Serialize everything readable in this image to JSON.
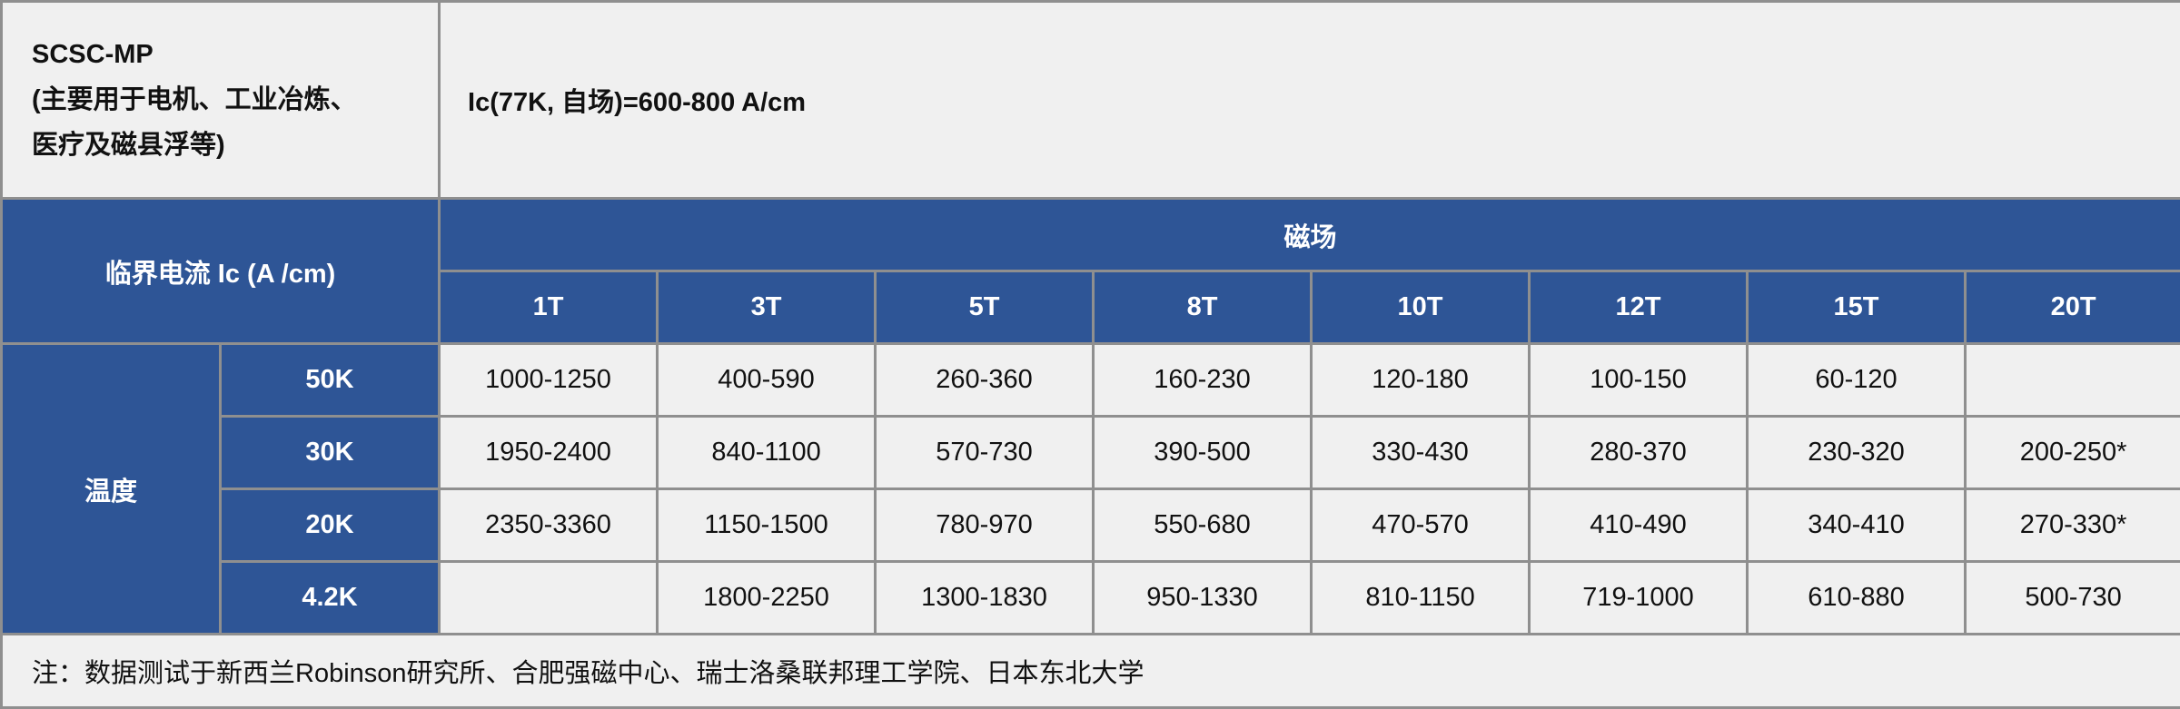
{
  "product": {
    "name": "SCSC-MP",
    "usage_line1": "(主要用于电机、工业冶炼、",
    "usage_line2": "医疗及磁县浮等)",
    "spec": "Ic(77K, 自场)=600-800 A/cm"
  },
  "header": {
    "critical_current": "临界电流 Ic (A /cm)",
    "field": "磁场",
    "fields": [
      "1T",
      "3T",
      "5T",
      "8T",
      "10T",
      "12T",
      "15T",
      "20T"
    ]
  },
  "temperature_label": "温度",
  "rows": [
    {
      "temp": "50K",
      "values": [
        "1000-1250",
        "400-590",
        "260-360",
        "160-230",
        "120-180",
        "100-150",
        "60-120",
        ""
      ]
    },
    {
      "temp": "30K",
      "values": [
        "1950-2400",
        "840-1100",
        "570-730",
        "390-500",
        "330-430",
        "280-370",
        "230-320",
        "200-250*"
      ]
    },
    {
      "temp": "20K",
      "values": [
        "2350-3360",
        "1150-1500",
        "780-970",
        "550-680",
        "470-570",
        "410-490",
        "340-410",
        "270-330*"
      ]
    },
    {
      "temp": "4.2K",
      "values": [
        "",
        "1800-2250",
        "1300-1830",
        "950-1330",
        "810-1150",
        "719-1000",
        "610-880",
        "500-730"
      ]
    }
  ],
  "note": "注：数据测试于新西兰Robinson研究所、合肥强磁中心、瑞士洛桑联邦理工学院、日本东北大学",
  "colors": {
    "header_blue": "#2e5596",
    "cell_bg": "#f0f0f0",
    "border": "#8f8f8f"
  }
}
